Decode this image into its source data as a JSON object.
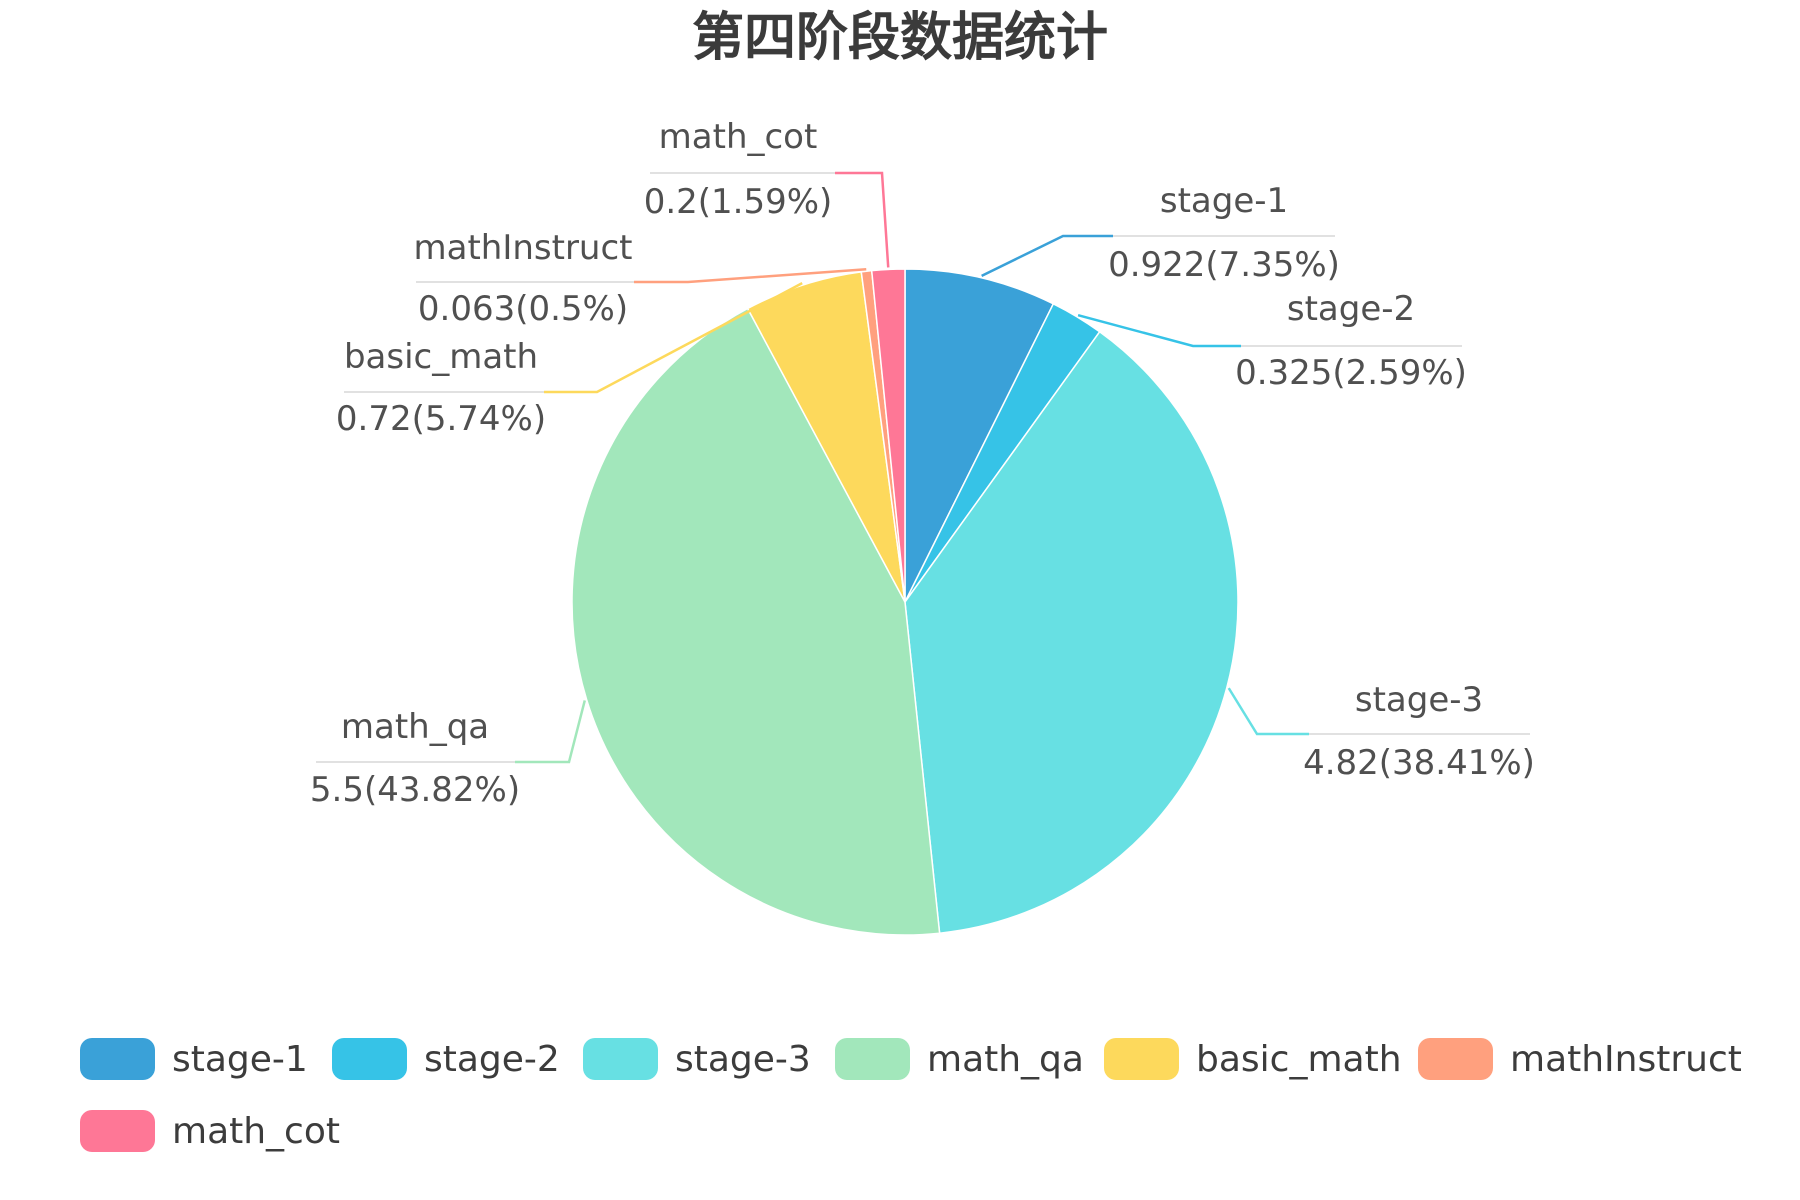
{
  "chart_data": {
    "type": "pie",
    "title": "第四阶段数据统计",
    "label_format": "value(percent)",
    "legend_position": "bottom",
    "slices": [
      {
        "name": "stage-1",
        "value": 0.922,
        "percent": "7.35%",
        "color": "#3aa1d8"
      },
      {
        "name": "stage-2",
        "value": 0.325,
        "percent": "2.59%",
        "color": "#36c3e7"
      },
      {
        "name": "stage-3",
        "value": 4.82,
        "percent": "38.41%",
        "color": "#67e0e3"
      },
      {
        "name": "math_qa",
        "value": 5.5,
        "percent": "43.82%",
        "color": "#a2e7bb"
      },
      {
        "name": "basic_math",
        "value": 0.72,
        "percent": "5.74%",
        "color": "#fdd95c"
      },
      {
        "name": "mathInstruct",
        "value": 0.063,
        "percent": "0.5%",
        "color": "#ffa07e"
      },
      {
        "name": "math_cot",
        "value": 0.2,
        "percent": "1.59%",
        "color": "#fe7796"
      }
    ]
  }
}
